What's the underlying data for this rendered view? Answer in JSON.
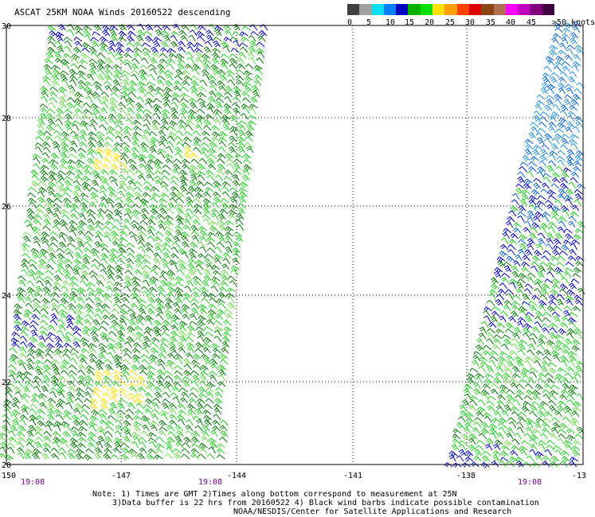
{
  "title": "ASCAT 25KM NOAA Winds 20160522 descending",
  "legend": {
    "colors": [
      "#404040",
      "#a0a0a0",
      "#00e0f0",
      "#0080ff",
      "#0000c0",
      "#00b000",
      "#00e000",
      "#ffe000",
      "#ffa000",
      "#ff4000",
      "#e00000",
      "#8b4513",
      "#b07050",
      "#ff00ff",
      "#c000c0",
      "#800080",
      "#400040"
    ],
    "labels": [
      "0",
      "5",
      "10",
      "15",
      "20",
      "25",
      "30",
      "35",
      "40",
      "45",
      ">50 knots"
    ]
  },
  "map": {
    "lat_ticks": [
      "30",
      "28",
      "26",
      "24",
      "22",
      "20"
    ],
    "lon_ticks": [
      "-150",
      "-147",
      "-144",
      "-141",
      "-138",
      "-13"
    ],
    "pass_times": [
      "19:08",
      "19:08",
      "19:08"
    ],
    "swaths": [
      {
        "side": "west"
      },
      {
        "side": "east"
      }
    ]
  },
  "notes": {
    "line1": "Note: 1) Times are GMT 2)Times along bottom correspond to measurement at 25N",
    "line2": "3)Data buffer is 22 hrs from 20160522 4) Black wind barbs indicate possible contamination",
    "line3": "NOAA/NESDIS/Center for Satellite Applications and Research"
  }
}
